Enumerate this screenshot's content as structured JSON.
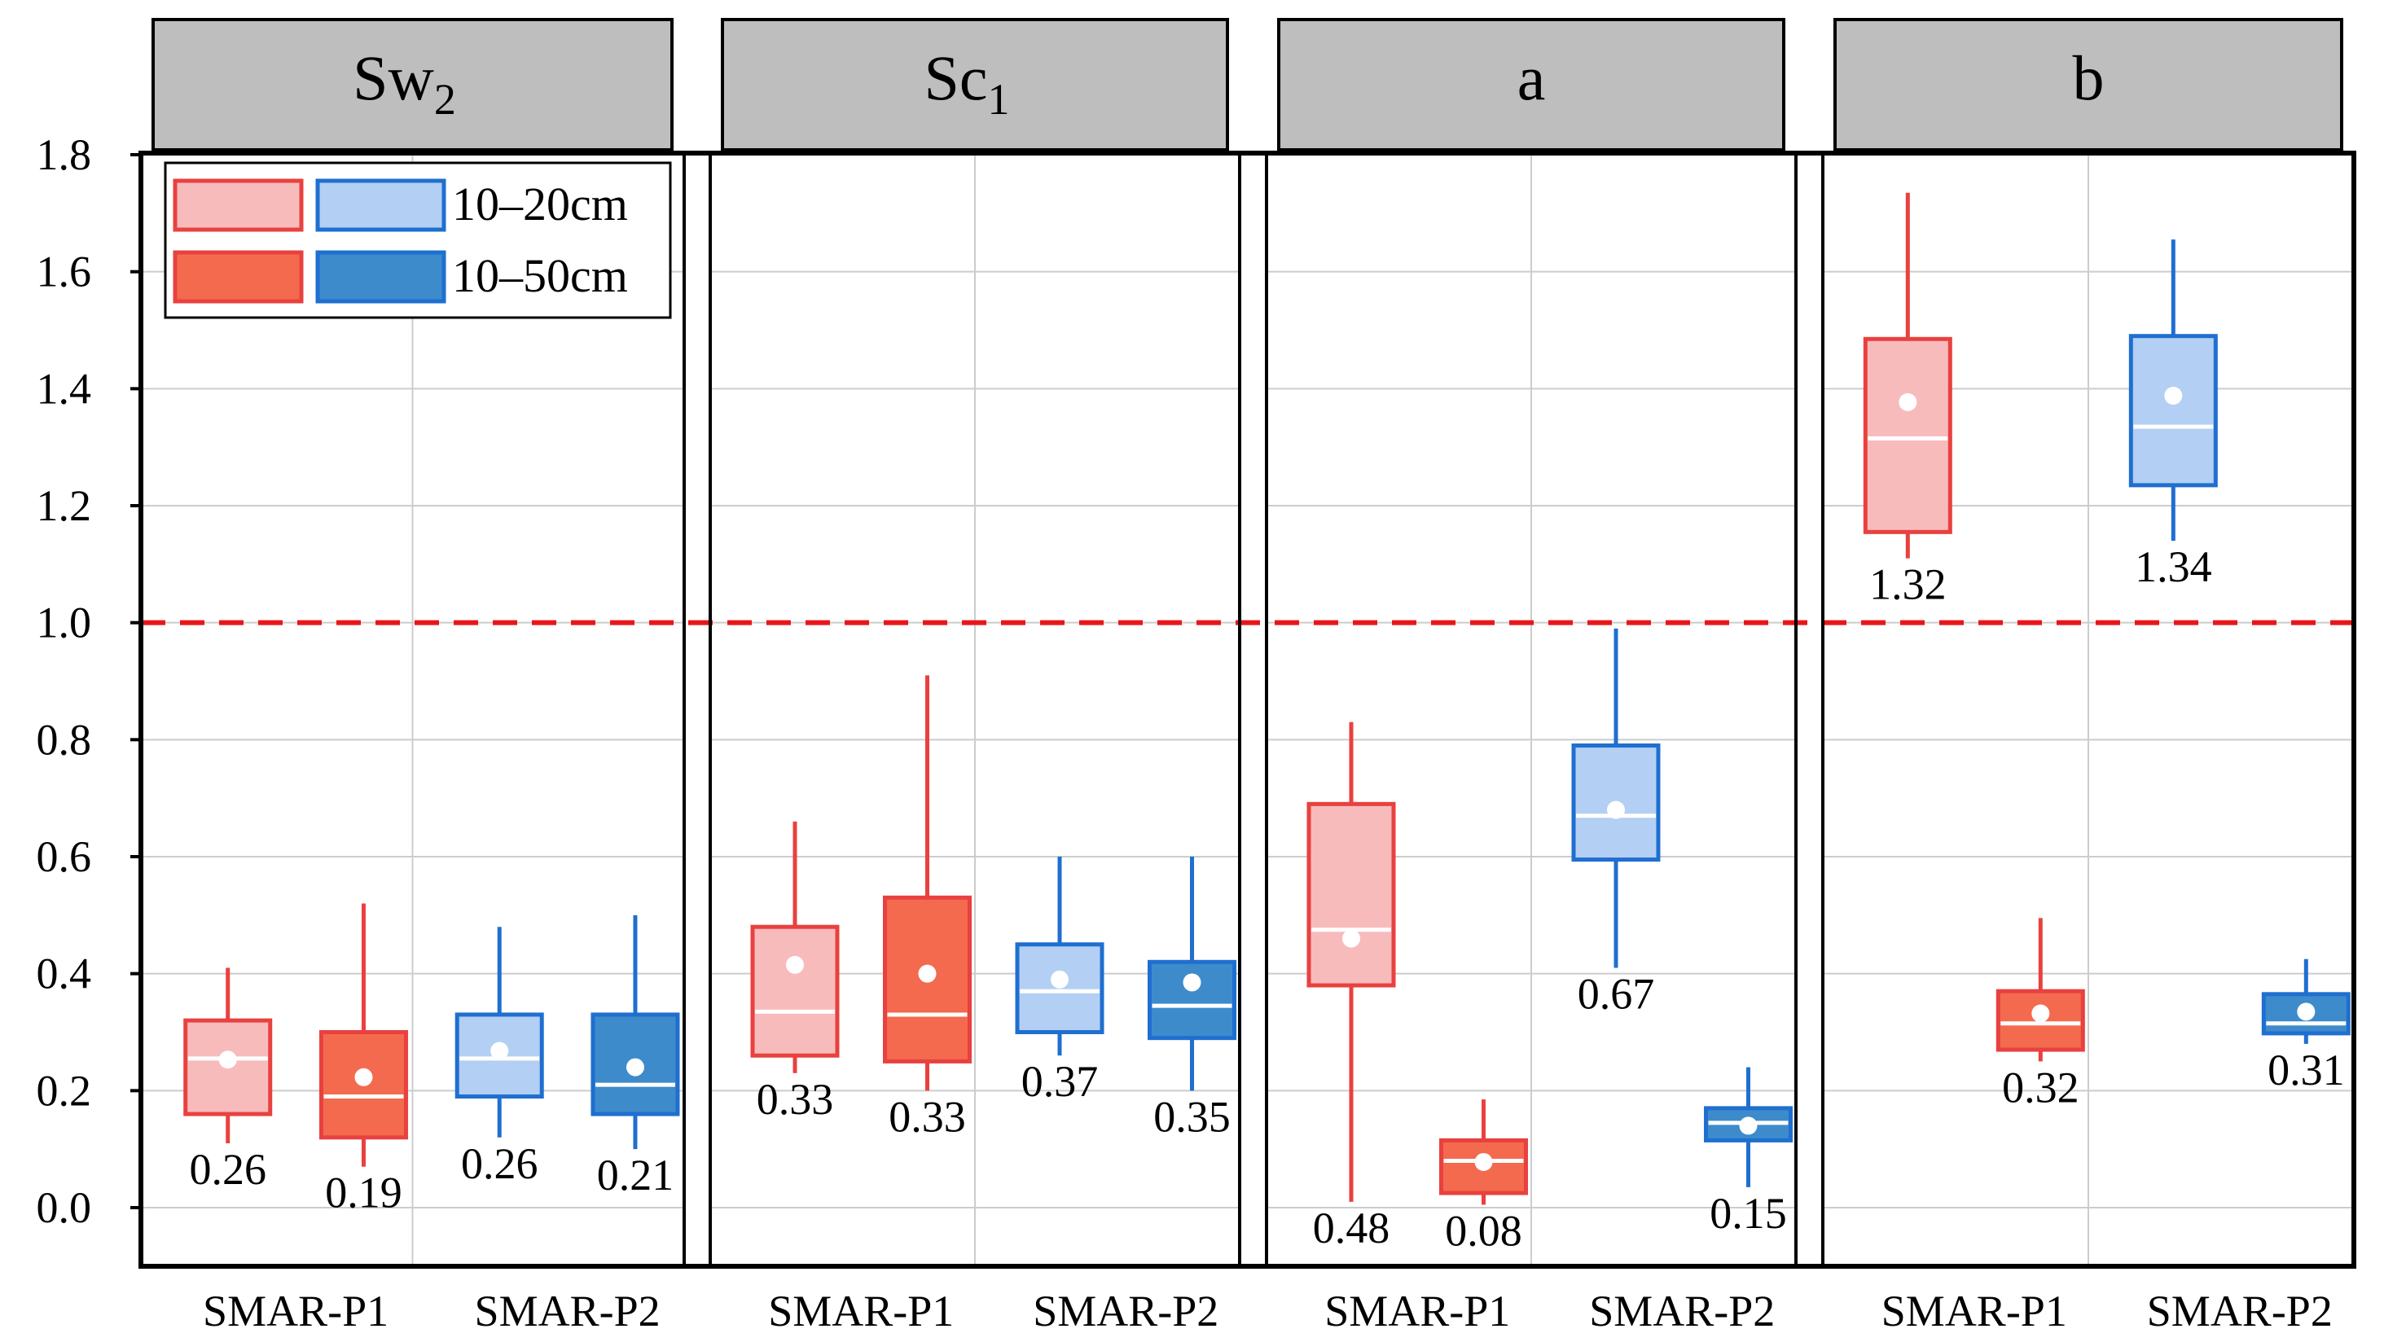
{
  "chart_data": {
    "type": "boxplot",
    "ylim": [
      0,
      1.8
    ],
    "yticks": [
      "0.0",
      "0.2",
      "0.4",
      "0.6",
      "0.8",
      "1.0",
      "1.2",
      "1.4",
      "1.6",
      "1.8"
    ],
    "reference_line": 1.0,
    "groups": [
      "SMAR-P1",
      "SMAR-P2"
    ],
    "legend": {
      "entries": [
        "10–20cm",
        "10–50cm"
      ],
      "position": "top-left"
    },
    "colors": {
      "red_light_fill": "#F8BBBC",
      "red_dark_fill": "#F46A4E",
      "red_stroke": "#E8413F",
      "blue_light_fill": "#B3CFF3",
      "blue_dark_fill": "#3D8BCB",
      "blue_stroke": "#1F6FD0",
      "ref_line": "#E8161A",
      "strip": "#BEBEBE",
      "grid": "#CCCCCC"
    },
    "panels": [
      {
        "label": "Sw",
        "subscript": "2",
        "boxes": [
          {
            "name": "SMAR-P1 10–20cm",
            "style": "red_light",
            "whisker_low": 0.11,
            "q1": 0.16,
            "median": 0.255,
            "q3": 0.32,
            "whisker_high": 0.41,
            "mean": 0.253,
            "label": "0.26"
          },
          {
            "name": "SMAR-P1 10–50cm",
            "style": "red_dark",
            "whisker_low": 0.07,
            "q1": 0.12,
            "median": 0.19,
            "q3": 0.3,
            "whisker_high": 0.52,
            "mean": 0.223,
            "label": "0.19"
          },
          {
            "name": "SMAR-P2 10–20cm",
            "style": "blue_light",
            "whisker_low": 0.12,
            "q1": 0.19,
            "median": 0.255,
            "q3": 0.33,
            "whisker_high": 0.48,
            "mean": 0.268,
            "label": "0.26"
          },
          {
            "name": "SMAR-P2 10–50cm",
            "style": "blue_dark",
            "whisker_low": 0.1,
            "q1": 0.16,
            "median": 0.21,
            "q3": 0.33,
            "whisker_high": 0.5,
            "mean": 0.24,
            "label": "0.21"
          }
        ]
      },
      {
        "label": "Sc",
        "subscript": "1",
        "boxes": [
          {
            "name": "SMAR-P1 10–20cm",
            "style": "red_light",
            "whisker_low": 0.23,
            "q1": 0.26,
            "median": 0.335,
            "q3": 0.48,
            "whisker_high": 0.66,
            "mean": 0.415,
            "label": "0.33"
          },
          {
            "name": "SMAR-P1 10–50cm",
            "style": "red_dark",
            "whisker_low": 0.2,
            "q1": 0.25,
            "median": 0.33,
            "q3": 0.53,
            "whisker_high": 0.91,
            "mean": 0.4,
            "label": "0.33"
          },
          {
            "name": "SMAR-P2 10–20cm",
            "style": "blue_light",
            "whisker_low": 0.26,
            "q1": 0.3,
            "median": 0.37,
            "q3": 0.45,
            "whisker_high": 0.6,
            "mean": 0.39,
            "label": "0.37"
          },
          {
            "name": "SMAR-P2 10–50cm",
            "style": "blue_dark",
            "whisker_low": 0.2,
            "q1": 0.29,
            "median": 0.345,
            "q3": 0.42,
            "whisker_high": 0.6,
            "mean": 0.385,
            "label": "0.35"
          }
        ]
      },
      {
        "label": "a",
        "subscript": "",
        "boxes": [
          {
            "name": "SMAR-P1 10–20cm",
            "style": "red_light",
            "whisker_low": 0.01,
            "q1": 0.38,
            "median": 0.475,
            "q3": 0.69,
            "whisker_high": 0.83,
            "mean": 0.46,
            "label": "0.48"
          },
          {
            "name": "SMAR-P1 10–50cm",
            "style": "red_dark",
            "whisker_low": 0.005,
            "q1": 0.025,
            "median": 0.08,
            "q3": 0.115,
            "whisker_high": 0.185,
            "mean": 0.078,
            "label": "0.08"
          },
          {
            "name": "SMAR-P2 10–20cm",
            "style": "blue_light",
            "whisker_low": 0.41,
            "q1": 0.595,
            "median": 0.67,
            "q3": 0.79,
            "whisker_high": 0.99,
            "mean": 0.68,
            "label": "0.67"
          },
          {
            "name": "SMAR-P2 10–50cm",
            "style": "blue_dark",
            "whisker_low": 0.035,
            "q1": 0.115,
            "median": 0.145,
            "q3": 0.17,
            "whisker_high": 0.24,
            "mean": 0.14,
            "label": "0.15"
          }
        ]
      },
      {
        "label": "b",
        "subscript": "",
        "boxes": [
          {
            "name": "SMAR-P1 10–20cm",
            "style": "red_light",
            "whisker_low": 1.11,
            "q1": 1.155,
            "median": 1.315,
            "q3": 1.485,
            "whisker_high": 1.735,
            "mean": 1.377,
            "label": "1.32"
          },
          {
            "name": "SMAR-P1 10–50cm",
            "style": "red_dark",
            "whisker_low": 0.25,
            "q1": 0.27,
            "median": 0.315,
            "q3": 0.37,
            "whisker_high": 0.495,
            "mean": 0.332,
            "label": "0.32"
          },
          {
            "name": "SMAR-P2 10–20cm",
            "style": "blue_light",
            "whisker_low": 1.14,
            "q1": 1.235,
            "median": 1.335,
            "q3": 1.49,
            "whisker_high": 1.655,
            "mean": 1.388,
            "label": "1.34"
          },
          {
            "name": "SMAR-P2 10–50cm",
            "style": "blue_dark",
            "whisker_low": 0.28,
            "q1": 0.298,
            "median": 0.315,
            "q3": 0.365,
            "whisker_high": 0.425,
            "mean": 0.335,
            "label": "0.31"
          }
        ]
      }
    ]
  }
}
